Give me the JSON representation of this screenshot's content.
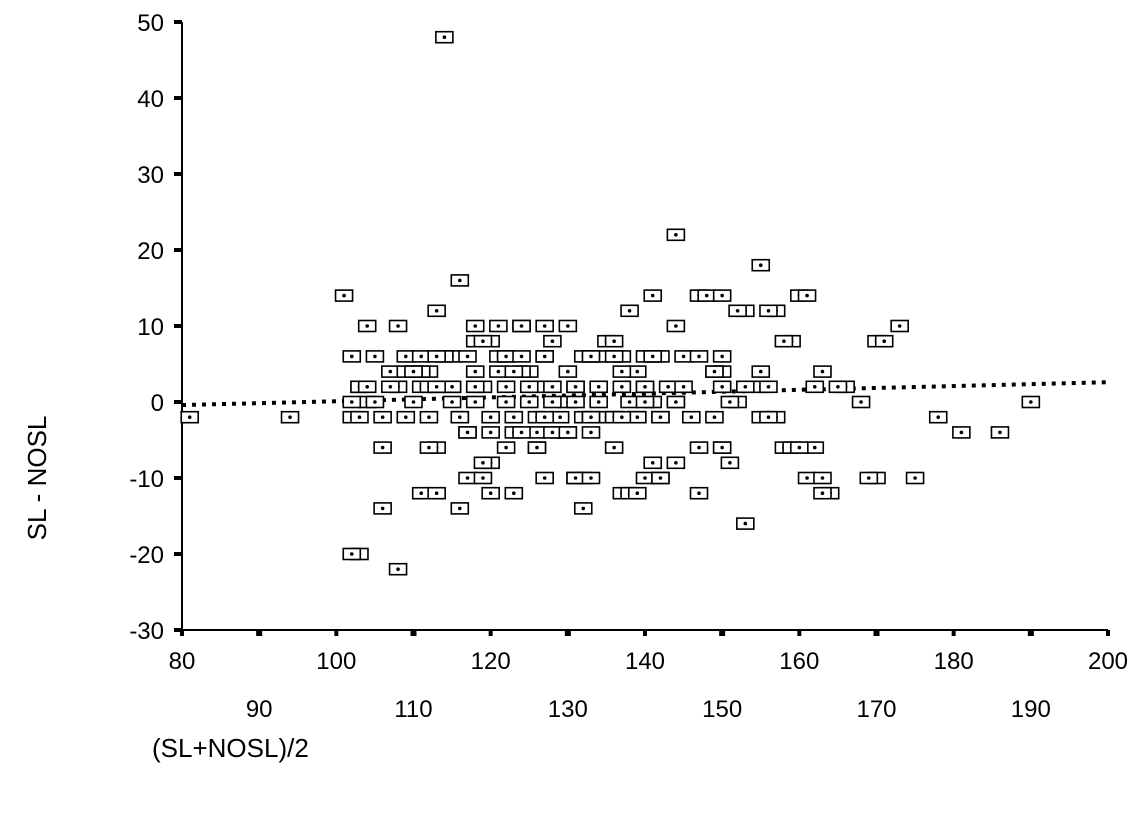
{
  "chart_data": {
    "type": "scatter",
    "xlabel": "(SL+NOSL)/2",
    "ylabel": "SL - NOSL",
    "xlim": [
      80,
      200
    ],
    "ylim": [
      -30,
      50
    ],
    "xticks_major": [
      "80",
      "100",
      "120",
      "140",
      "160",
      "180",
      "200"
    ],
    "xticks_minor": [
      "90",
      "110",
      "130",
      "150",
      "170",
      "190"
    ],
    "yticks": [
      "50",
      "40",
      "30",
      "20",
      "10",
      "0",
      "-10",
      "-20",
      "-30"
    ],
    "grid": false,
    "marker": "boxed-dot",
    "trend_line": {
      "style": "dotted",
      "x": [
        80,
        200
      ],
      "y": [
        -0.4,
        2.6
      ]
    },
    "x": [
      81,
      94,
      114,
      101,
      102,
      103,
      104,
      106,
      108,
      113,
      116,
      118,
      120,
      122,
      125,
      127,
      130,
      133,
      135,
      138,
      141,
      144,
      147,
      150,
      152,
      155,
      157,
      160,
      163,
      166,
      170,
      173,
      104,
      109,
      112,
      115,
      118,
      121,
      124,
      127,
      130,
      133,
      136,
      139,
      142,
      148,
      159,
      162,
      165,
      168,
      103,
      108,
      111,
      113,
      115,
      119,
      122,
      125,
      128,
      131,
      134,
      137,
      140,
      143,
      150,
      155,
      102,
      105,
      110,
      112,
      116,
      120,
      123,
      126,
      129,
      132,
      135,
      139,
      142,
      146,
      149,
      157,
      162,
      170,
      110,
      114,
      118,
      121,
      124,
      127,
      130,
      134,
      137,
      141,
      145,
      153,
      102,
      106,
      109,
      113,
      117,
      120,
      123,
      126,
      129,
      133,
      136,
      139,
      142,
      149,
      156,
      158,
      104,
      107,
      111,
      115,
      118,
      122,
      125,
      128,
      131,
      134,
      138,
      141,
      144,
      150,
      103,
      112,
      117,
      122,
      126,
      130,
      136,
      140,
      144,
      106,
      108,
      111,
      116,
      120,
      124,
      128,
      132,
      137,
      141,
      147,
      151,
      153,
      158,
      159,
      175,
      103,
      113,
      119,
      123,
      127,
      132,
      138,
      142,
      155,
      161,
      164,
      181,
      186,
      190,
      109,
      111,
      113,
      118,
      121,
      124,
      128,
      132,
      136,
      140,
      145,
      149,
      150,
      163,
      178,
      117,
      120,
      126,
      131,
      133,
      136,
      140,
      142,
      147,
      150,
      156,
      161,
      163,
      112,
      116,
      119,
      123,
      127,
      131,
      139,
      144,
      152,
      115,
      117,
      122,
      130,
      133,
      137,
      141,
      147,
      160,
      169,
      107,
      119,
      124,
      133,
      137,
      140,
      144,
      150,
      156,
      171,
      102,
      105,
      110,
      113,
      127,
      131,
      136,
      151,
      153,
      155
    ],
    "y": [
      -2,
      -2,
      48,
      14,
      6,
      2,
      0,
      -2,
      10,
      12,
      16,
      10,
      8,
      6,
      4,
      2,
      0,
      -4,
      8,
      12,
      14,
      22,
      14,
      6,
      0,
      18,
      12,
      14,
      4,
      2,
      8,
      10,
      10,
      6,
      4,
      6,
      4,
      6,
      4,
      6,
      4,
      6,
      6,
      4,
      6,
      14,
      8,
      2,
      2,
      0,
      2,
      2,
      4,
      2,
      2,
      2,
      2,
      2,
      2,
      2,
      2,
      2,
      2,
      2,
      4,
      2,
      0,
      0,
      0,
      -2,
      -2,
      -2,
      -2,
      -2,
      -2,
      -2,
      -2,
      -2,
      -2,
      -2,
      -2,
      -2,
      -6,
      -10,
      4,
      6,
      8,
      10,
      10,
      10,
      10,
      6,
      6,
      6,
      6,
      12,
      -2,
      -6,
      -2,
      -6,
      -4,
      -4,
      -4,
      -4,
      -4,
      -2,
      -2,
      -2,
      -2,
      4,
      12,
      8,
      2,
      4,
      6,
      0,
      0,
      0,
      0,
      0,
      0,
      0,
      0,
      0,
      0,
      -6,
      -2,
      -6,
      -10,
      -6,
      -6,
      -4,
      -6,
      -10,
      -8,
      -14,
      -22,
      -12,
      -14,
      -8,
      -4,
      -4,
      -10,
      -12,
      -8,
      -12,
      -8,
      -16,
      -6,
      -6,
      -10,
      -20,
      -12,
      -8,
      -12,
      -10,
      -14,
      -12,
      -10,
      -2,
      -10,
      -12,
      -4,
      -4,
      0,
      4,
      2,
      6,
      2,
      4,
      10,
      8,
      6,
      8,
      6,
      2,
      4,
      -6,
      -10,
      -2,
      -4,
      -12,
      -6,
      -10,
      -2,
      -2,
      2,
      -10,
      -6,
      14,
      2,
      14,
      -12,
      2,
      -2,
      -10,
      4,
      -2,
      -10,
      -12,
      10,
      12,
      2,
      6,
      6,
      -4,
      -10,
      4,
      6,
      6,
      -6,
      -10,
      2,
      8,
      6,
      6,
      -2,
      0,
      0,
      2,
      -2,
      8,
      -20,
      6,
      4,
      2,
      6,
      2,
      6,
      0,
      2,
      4
    ]
  }
}
